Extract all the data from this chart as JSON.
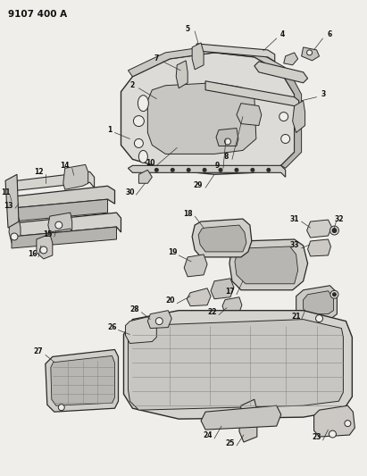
{
  "title": "9107 400 A",
  "bg_color": "#f0eeea",
  "line_color": "#2a2a2a",
  "text_color": "#111111",
  "fig_width": 4.11,
  "fig_height": 5.33,
  "dpi": 100
}
